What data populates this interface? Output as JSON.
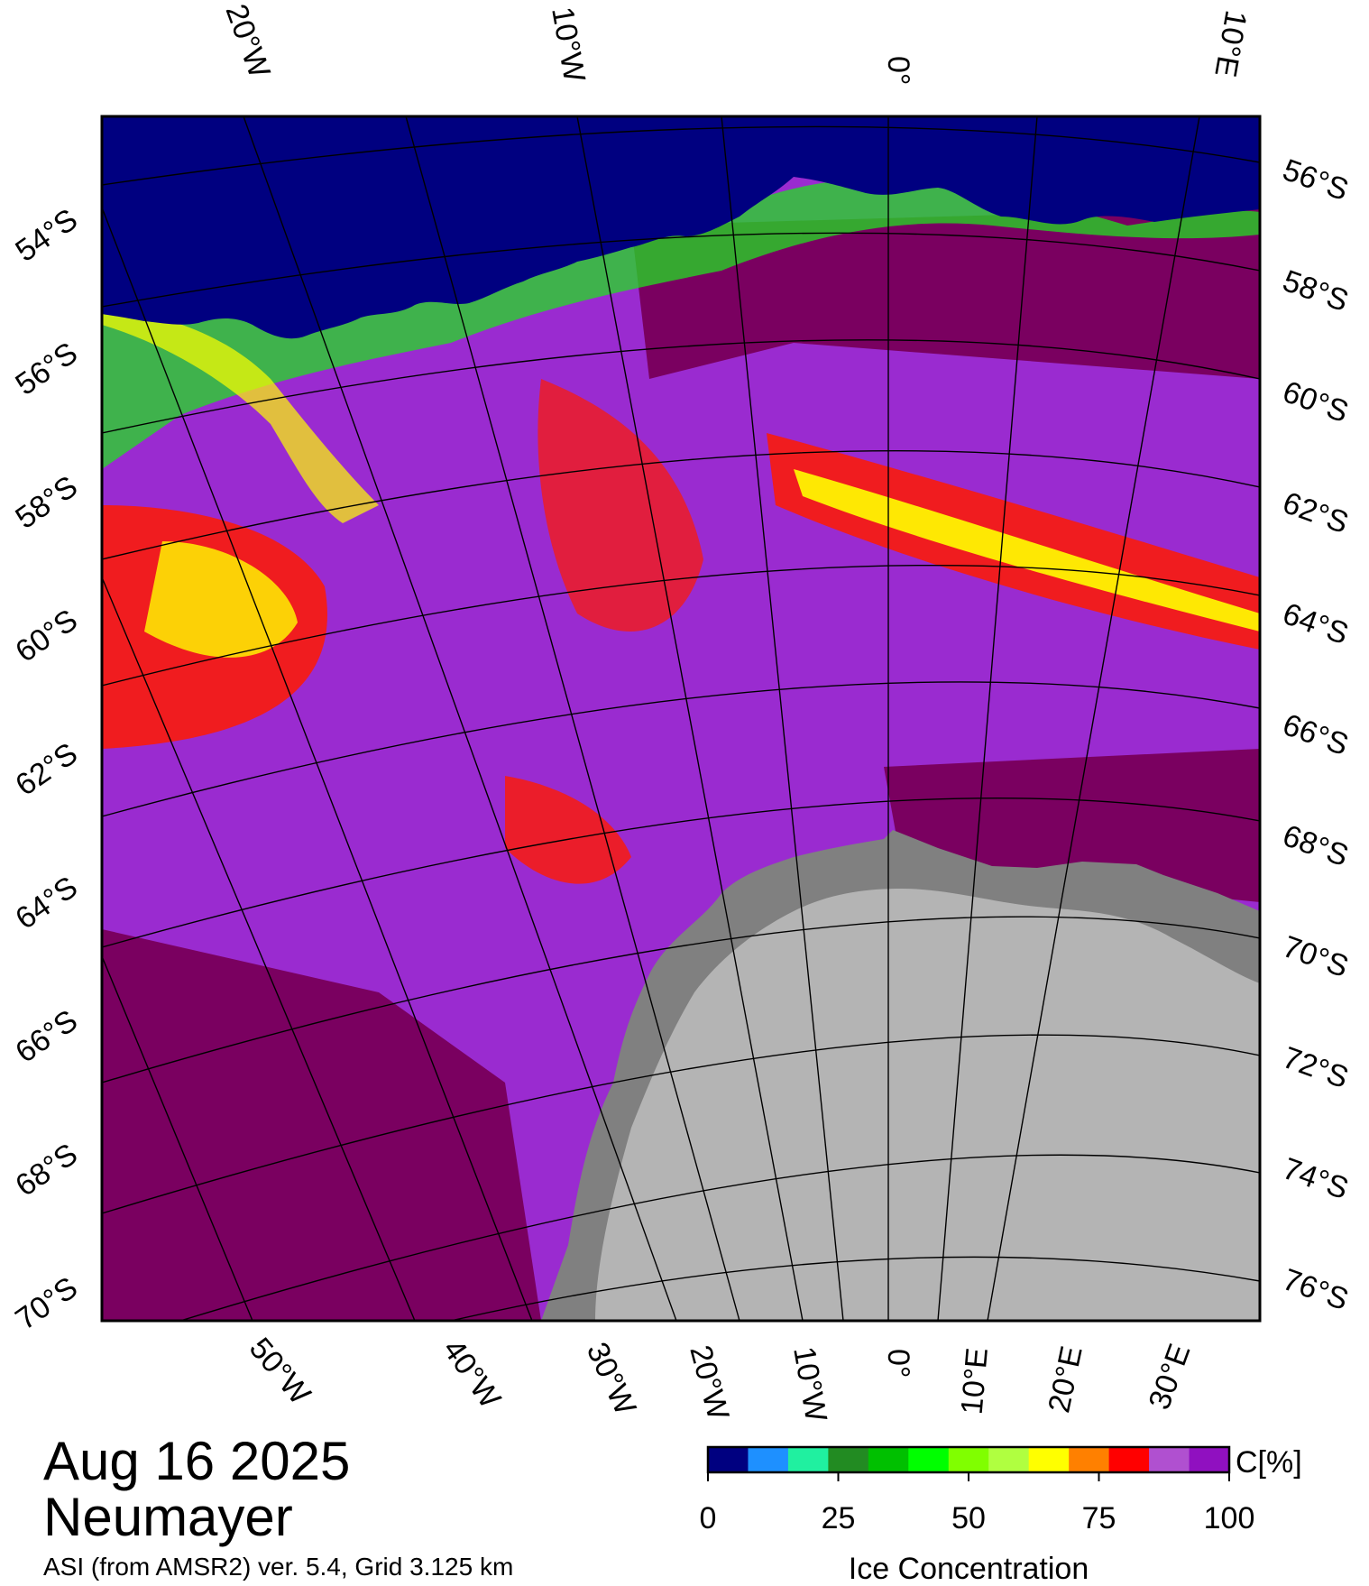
{
  "date": "Aug 16 2025",
  "station": "Neumayer",
  "product": "ASI (from AMSR2) ver. 5.4,  Grid 3.125 km",
  "colors": {
    "open_water": "#000080",
    "ice_high": "#7a0060",
    "ice_mid": "#9a2bd0",
    "ice_red": "#ff1a00",
    "ice_yellow": "#ffff00",
    "ice_green": "#20e020",
    "land_ice_shelf": "#808080",
    "land": "#b4b4b4"
  },
  "map": {
    "top_labels": [
      "20°W",
      "10°W",
      "0°",
      "10°E"
    ],
    "left_labels": [
      "54°S",
      "56°S",
      "58°S",
      "60°S",
      "62°S",
      "64°S",
      "66°S",
      "68°S",
      "70°S"
    ],
    "right_labels": [
      "56°S",
      "58°S",
      "60°S",
      "62°S",
      "64°S",
      "66°S",
      "68°S",
      "70°S",
      "72°S",
      "74°S",
      "76°S"
    ],
    "bottom_labels": [
      "50°W",
      "40°W",
      "30°W",
      "20°W",
      "10°W",
      "0°",
      "10°E",
      "20°E",
      "30°E"
    ]
  },
  "colorbar": {
    "unit_label": "C[%]",
    "title": "Ice Concentration",
    "ticks": [
      "0",
      "25",
      "50",
      "75",
      "100"
    ],
    "colors": [
      "#000080",
      "#1e90ff",
      "#20f0a0",
      "#228b22",
      "#00c000",
      "#00ff00",
      "#80ff00",
      "#b0ff40",
      "#ffff00",
      "#ff8000",
      "#ff0000",
      "#b050d0",
      "#9010c0"
    ]
  }
}
